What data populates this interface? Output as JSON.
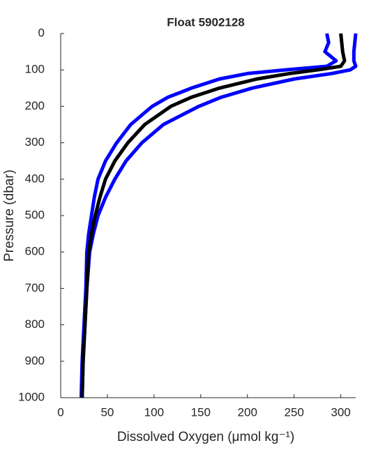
{
  "chart_data": {
    "type": "line",
    "title": "Float 5902128",
    "xlabel": "Dissolved Oxygen (μmol kg⁻¹)",
    "ylabel": "Pressure (dbar)",
    "y": [
      0,
      25,
      50,
      75,
      90,
      100,
      110,
      125,
      150,
      175,
      200,
      250,
      300,
      350,
      400,
      450,
      500,
      550,
      600,
      700,
      800,
      900,
      1000
    ],
    "series": [
      {
        "color": "#0000ff",
        "values": [
          285,
          287,
          283,
          295,
          285,
          240,
          200,
          170,
          140,
          115,
          98,
          75,
          60,
          48,
          40,
          36,
          33,
          30,
          28,
          27,
          25,
          23,
          22
        ]
      },
      {
        "color": "#0000ff",
        "values": [
          316,
          315,
          314,
          314,
          316,
          310,
          290,
          250,
          205,
          172,
          148,
          110,
          87,
          70,
          58,
          48,
          40,
          35,
          31,
          28,
          26,
          24,
          23
        ]
      },
      {
        "color": "#000000",
        "values": [
          300,
          301,
          302,
          304,
          300,
          275,
          245,
          210,
          170,
          140,
          118,
          90,
          72,
          58,
          48,
          42,
          37,
          33,
          30,
          28,
          26,
          24,
          23
        ]
      }
    ],
    "xlim": [
      0,
      316
    ],
    "xticks": [
      0,
      50,
      100,
      150,
      200,
      250,
      300
    ],
    "ylim": [
      0,
      1000
    ],
    "yticks": [
      0,
      100,
      200,
      300,
      400,
      500,
      600,
      700,
      800,
      900,
      1000
    ],
    "y_reversed": true
  }
}
